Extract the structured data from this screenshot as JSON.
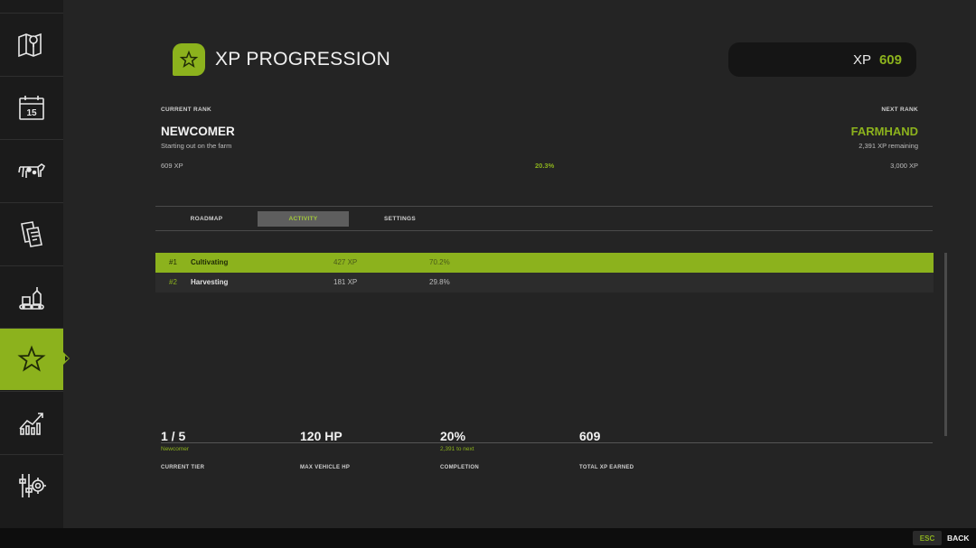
{
  "header": {
    "title": "XP PROGRESSION",
    "xp_label": "XP",
    "xp_value": "609"
  },
  "rank": {
    "current_label": "CURRENT RANK",
    "current_name": "NEWCOMER",
    "current_desc": "Starting out on the farm",
    "next_label": "NEXT RANK",
    "next_name": "FARMHAND",
    "next_remaining": "2,391 XP remaining",
    "xp_start": "609 XP",
    "xp_end": "3,000 XP",
    "progress_percent": "20.3%"
  },
  "tabs": [
    {
      "label": "ROADMAP",
      "active": false
    },
    {
      "label": "ACTIVITY",
      "active": true
    },
    {
      "label": "SETTINGS",
      "active": false
    }
  ],
  "activity": [
    {
      "rank": "#1",
      "name": "Cultivating",
      "xp": "427 XP",
      "pct": "70.2%"
    },
    {
      "rank": "#2",
      "name": "Harvesting",
      "xp": "181 XP",
      "pct": "29.8%"
    }
  ],
  "stats": [
    {
      "value": "1 / 5",
      "sub": "Newcomer",
      "label": "CURRENT TIER"
    },
    {
      "value": "120 HP",
      "sub": "",
      "label": "MAX VEHICLE HP"
    },
    {
      "value": "20%",
      "sub": "2,391 to next",
      "label": "COMPLETION"
    },
    {
      "value": "609",
      "sub": "",
      "label": "TOTAL XP EARNED"
    }
  ],
  "sidebar": {
    "items": [
      "map-icon",
      "calendar-icon",
      "livestock-icon",
      "contracts-icon",
      "production-icon",
      "star-icon",
      "statistics-icon",
      "settings-icon"
    ],
    "calendar_day": "15",
    "active": "star-icon"
  },
  "footer": {
    "key": "ESC",
    "action": "BACK"
  },
  "colors": {
    "accent": "#8cb21d",
    "background": "#242424",
    "sidebar": "#1b1b1b"
  }
}
